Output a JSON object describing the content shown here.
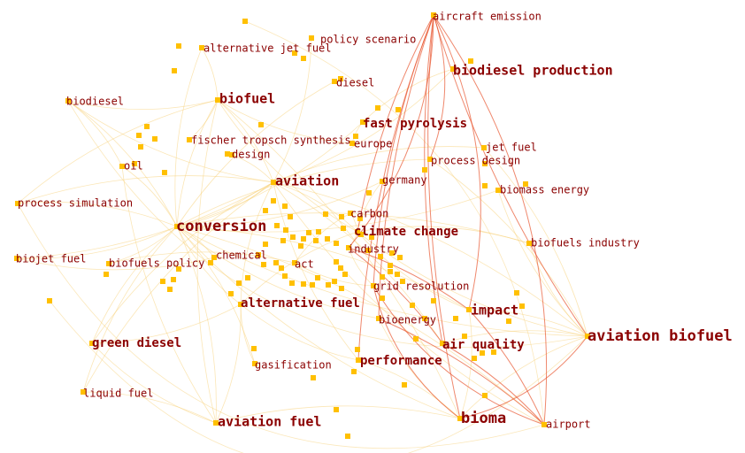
{
  "network": {
    "colors": {
      "node": "#ffc000",
      "label": "#8b0000",
      "edge_light": "#f8d27a",
      "edge_strong": "#e8562f"
    },
    "terms": [
      {
        "id": "aircraft_emission",
        "label": "aircraft emission",
        "weight": 1
      },
      {
        "id": "policy_scenario",
        "label": "policy scenario",
        "weight": 1
      },
      {
        "id": "alternative_jet_fuel",
        "label": "alternative jet fuel",
        "weight": 1
      },
      {
        "id": "biodiesel_production",
        "label": "biodiesel production",
        "weight": 3
      },
      {
        "id": "diesel",
        "label": "diesel",
        "weight": 1
      },
      {
        "id": "biofuel",
        "label": "biofuel",
        "weight": 3
      },
      {
        "id": "biodiesel",
        "label": "biodiesel",
        "weight": 1
      },
      {
        "id": "fast_pyrolysis",
        "label": "fast pyrolysis",
        "weight": 2
      },
      {
        "id": "fischer_tropsch",
        "label": "fischer tropsch synthesis",
        "weight": 1
      },
      {
        "id": "europe",
        "label": "europe",
        "weight": 1
      },
      {
        "id": "jet_fuel",
        "label": "jet fuel",
        "weight": 1
      },
      {
        "id": "design",
        "label": "design",
        "weight": 1
      },
      {
        "id": "process_design",
        "label": "process design",
        "weight": 1
      },
      {
        "id": "oil",
        "label": "oil",
        "weight": 1
      },
      {
        "id": "aviation",
        "label": "aviation",
        "weight": 3
      },
      {
        "id": "germany",
        "label": "germany",
        "weight": 1
      },
      {
        "id": "biomass_energy",
        "label": "biomass energy",
        "weight": 1
      },
      {
        "id": "process_simulation",
        "label": "process simulation",
        "weight": 1
      },
      {
        "id": "carbon",
        "label": "carbon",
        "weight": 1
      },
      {
        "id": "conversion",
        "label": "conversion",
        "weight": 4
      },
      {
        "id": "climate_change",
        "label": "climate change",
        "weight": 2
      },
      {
        "id": "biofuels_industry",
        "label": "biofuels industry",
        "weight": 1
      },
      {
        "id": "industry",
        "label": "industry",
        "weight": 1
      },
      {
        "id": "biojet_fuel",
        "label": "biojet fuel",
        "weight": 1
      },
      {
        "id": "chemical",
        "label": "chemical",
        "weight": 1
      },
      {
        "id": "biofuels_policy",
        "label": "biofuels policy",
        "weight": 1
      },
      {
        "id": "act",
        "label": "act",
        "weight": 1
      },
      {
        "id": "grid_resolution",
        "label": "grid resolution",
        "weight": 1
      },
      {
        "id": "alternative_fuel",
        "label": "alternative fuel",
        "weight": 2
      },
      {
        "id": "impact",
        "label": "impact",
        "weight": 3
      },
      {
        "id": "bioenergy",
        "label": "bioenergy",
        "weight": 1
      },
      {
        "id": "aviation_biofuel",
        "label": "aviation biofuel",
        "weight": 4
      },
      {
        "id": "green_diesel",
        "label": "green diesel",
        "weight": 2
      },
      {
        "id": "air_quality",
        "label": "air quality",
        "weight": 2
      },
      {
        "id": "gasification",
        "label": "gasification",
        "weight": 1
      },
      {
        "id": "performance",
        "label": "performance",
        "weight": 2
      },
      {
        "id": "liquid_fuel",
        "label": "liquid fuel",
        "weight": 1
      },
      {
        "id": "aviation_fuel",
        "label": "aviation fuel",
        "weight": 3
      },
      {
        "id": "bioma",
        "label": "bioma",
        "weight": 4
      },
      {
        "id": "airport",
        "label": "airport",
        "weight": 1
      }
    ]
  }
}
